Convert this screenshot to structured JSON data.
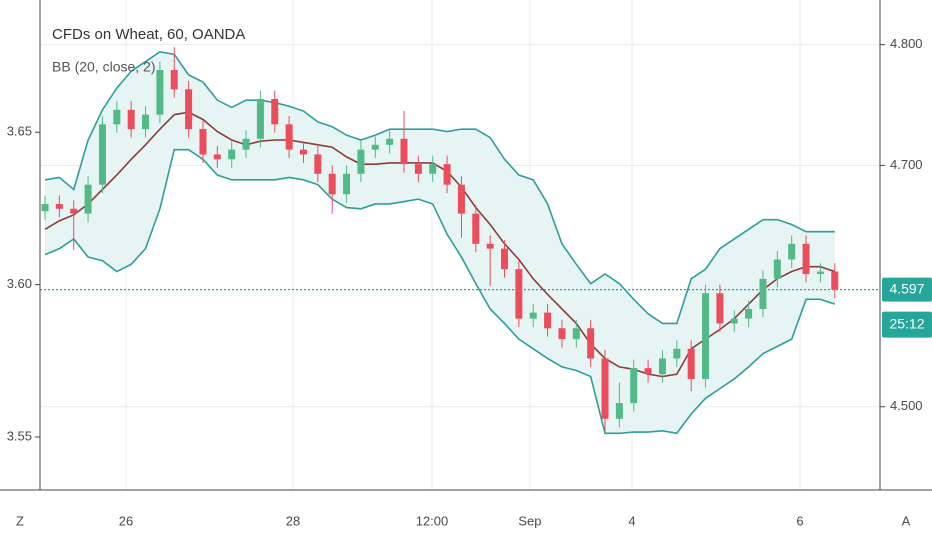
{
  "chart_data": {
    "type": "candlestick",
    "title": "CFDs on Wheat, 60, OANDA",
    "indicator": "BB (20, close, 2)",
    "open": [
      4.662,
      4.668,
      4.664,
      4.66,
      4.684,
      4.734,
      4.746,
      4.73,
      4.742,
      4.779,
      4.763,
      4.73,
      4.709,
      4.705,
      4.713,
      4.722,
      4.755,
      4.734,
      4.713,
      4.709,
      4.693,
      4.676,
      4.693,
      4.713,
      4.717,
      4.722,
      4.701,
      4.693,
      4.701,
      4.684,
      4.66,
      4.635,
      4.631,
      4.614,
      4.573,
      4.578,
      4.565,
      4.556,
      4.565,
      4.54,
      4.49,
      4.503,
      4.532,
      4.527,
      4.54,
      4.548,
      4.523,
      4.594,
      4.569,
      4.573,
      4.581,
      4.606,
      4.622,
      4.635,
      4.61,
      4.612
    ],
    "high": [
      4.675,
      4.675,
      4.671,
      4.691,
      4.741,
      4.753,
      4.753,
      4.749,
      4.786,
      4.798,
      4.77,
      4.737,
      4.716,
      4.72,
      4.729,
      4.762,
      4.762,
      4.741,
      4.72,
      4.716,
      4.7,
      4.7,
      4.72,
      4.724,
      4.729,
      4.745,
      4.708,
      4.708,
      4.708,
      4.691,
      4.667,
      4.642,
      4.638,
      4.621,
      4.585,
      4.585,
      4.572,
      4.572,
      4.572,
      4.547,
      4.52,
      4.539,
      4.539,
      4.547,
      4.555,
      4.555,
      4.601,
      4.601,
      4.58,
      4.588,
      4.613,
      4.629,
      4.642,
      4.642,
      4.619,
      4.619
    ],
    "low": [
      4.655,
      4.657,
      4.63,
      4.653,
      4.677,
      4.727,
      4.723,
      4.723,
      4.735,
      4.756,
      4.723,
      4.702,
      4.698,
      4.698,
      4.706,
      4.715,
      4.727,
      4.706,
      4.702,
      4.686,
      4.66,
      4.669,
      4.686,
      4.706,
      4.71,
      4.694,
      4.686,
      4.686,
      4.677,
      4.64,
      4.628,
      4.6,
      4.607,
      4.566,
      4.566,
      4.558,
      4.549,
      4.549,
      4.533,
      4.48,
      4.483,
      4.496,
      4.52,
      4.52,
      4.533,
      4.513,
      4.516,
      4.562,
      4.562,
      4.566,
      4.574,
      4.599,
      4.615,
      4.603,
      4.603,
      4.59
    ],
    "close": [
      4.668,
      4.664,
      4.66,
      4.684,
      4.734,
      4.746,
      4.73,
      4.742,
      4.779,
      4.763,
      4.73,
      4.709,
      4.705,
      4.713,
      4.722,
      4.755,
      4.734,
      4.713,
      4.709,
      4.693,
      4.676,
      4.693,
      4.713,
      4.717,
      4.722,
      4.701,
      4.693,
      4.701,
      4.684,
      4.66,
      4.635,
      4.631,
      4.614,
      4.573,
      4.578,
      4.565,
      4.556,
      4.565,
      4.54,
      4.49,
      4.503,
      4.532,
      4.527,
      4.54,
      4.548,
      4.523,
      4.594,
      4.569,
      4.573,
      4.581,
      4.606,
      4.622,
      4.635,
      4.61,
      4.612,
      4.597
    ],
    "up_color": "#53b987",
    "down_color": "#eb4d5c",
    "bands": {
      "upper": [
        4.688,
        4.69,
        4.68,
        4.721,
        4.746,
        4.764,
        4.778,
        4.786,
        4.794,
        4.792,
        4.775,
        4.769,
        4.754,
        4.748,
        4.754,
        4.754,
        4.752,
        4.749,
        4.745,
        4.736,
        4.732,
        4.725,
        4.721,
        4.725,
        4.73,
        4.73,
        4.73,
        4.73,
        4.728,
        4.73,
        4.73,
        4.723,
        4.705,
        4.692,
        4.688,
        4.668,
        4.635,
        4.618,
        4.602,
        4.61,
        4.602,
        4.589,
        4.577,
        4.569,
        4.569,
        4.606,
        4.614,
        4.631,
        4.639,
        4.647,
        4.655,
        4.655,
        4.651,
        4.645,
        4.645,
        4.645
      ],
      "middle": [
        4.647,
        4.654,
        4.659,
        4.668,
        4.68,
        4.692,
        4.705,
        4.717,
        4.73,
        4.742,
        4.744,
        4.738,
        4.728,
        4.721,
        4.717,
        4.72,
        4.721,
        4.721,
        4.719,
        4.717,
        4.715,
        4.707,
        4.701,
        4.701,
        4.702,
        4.702,
        4.702,
        4.702,
        4.695,
        4.682,
        4.665,
        4.651,
        4.635,
        4.622,
        4.606,
        4.593,
        4.581,
        4.569,
        4.552,
        4.54,
        4.533,
        4.531,
        4.527,
        4.525,
        4.527,
        4.548,
        4.556,
        4.564,
        4.573,
        4.585,
        4.597,
        4.606,
        4.612,
        4.616,
        4.616,
        4.612
      ],
      "lower": [
        4.626,
        4.631,
        4.639,
        4.624,
        4.621,
        4.612,
        4.618,
        4.631,
        4.664,
        4.713,
        4.713,
        4.705,
        4.692,
        4.688,
        4.688,
        4.688,
        4.688,
        4.69,
        4.688,
        4.684,
        4.672,
        4.665,
        4.664,
        4.668,
        4.668,
        4.67,
        4.672,
        4.668,
        4.643,
        4.624,
        4.602,
        4.581,
        4.569,
        4.556,
        4.548,
        4.54,
        4.533,
        4.53,
        4.525,
        4.478,
        4.478,
        4.479,
        4.479,
        4.48,
        4.478,
        4.494,
        4.507,
        4.515,
        4.523,
        4.533,
        4.544,
        4.55,
        4.556,
        4.589,
        4.589,
        4.585
      ],
      "band_color": "#2e9e98",
      "middle_color": "#8e3b3b",
      "fill": "#e6f4f3"
    },
    "xlim": [
      -0.35,
      58.15
    ],
    "xticks": [
      {
        "value": 5.64,
        "label": "26"
      },
      {
        "value": 17.27,
        "label": "28"
      },
      {
        "value": 26.95,
        "label": "12:00"
      },
      {
        "value": 33.77,
        "label": "Sep"
      },
      {
        "value": 40.88,
        "label": "4"
      },
      {
        "value": 52.58,
        "label": "6"
      }
    ],
    "ylim": [
      4.431,
      4.837
    ],
    "yticks": [
      {
        "value": 4.5,
        "label": "4.500"
      },
      {
        "value": 4.7,
        "label": "4.700"
      },
      {
        "value": 4.8,
        "label": "4.800"
      }
    ],
    "y2lim": [
      3.5326,
      3.6934
    ],
    "y2ticks": [
      3.55,
      {
        "value": 3.6,
        "label": "3.60"
      },
      3.65
    ],
    "last_price": {
      "value": 4.597,
      "label": "4.597"
    },
    "countdown": "25:12",
    "grid": true
  },
  "controls": {
    "left": "Z",
    "right": "A"
  }
}
